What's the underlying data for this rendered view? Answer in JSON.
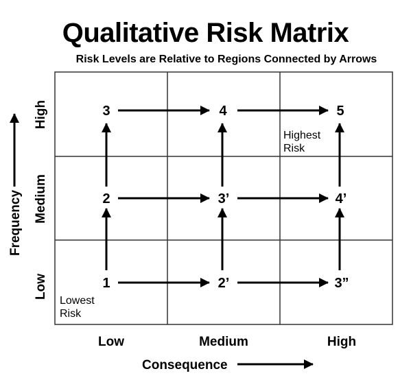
{
  "title": "Qualitative Risk Matrix",
  "subtitle": "Risk Levels are Relative to Regions Connected by Arrows",
  "axes": {
    "x_title": "Consequence",
    "y_title": "Frequency",
    "x_levels": [
      "Low",
      "Medium",
      "High"
    ],
    "y_levels": [
      "High",
      "Medium",
      "Low"
    ]
  },
  "nodes": {
    "high_row": [
      "3",
      "4",
      "5"
    ],
    "medium_row": [
      "2",
      "3’",
      "4’"
    ],
    "low_row": [
      "1",
      "2’",
      "3”"
    ]
  },
  "notes": {
    "highest_line1": "Highest",
    "highest_line2": "Risk",
    "lowest_line1": "Lowest",
    "lowest_line2": "Risk"
  },
  "colors": {
    "line": "#000000",
    "grid": "#333333",
    "background": "#ffffff"
  }
}
